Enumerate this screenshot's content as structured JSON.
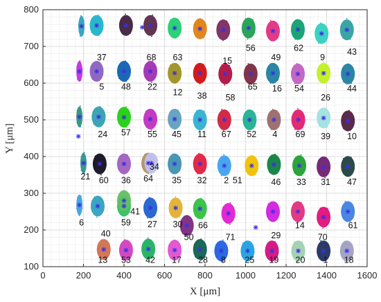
{
  "chart_data": {
    "type": "scatter",
    "title": "",
    "xlabel": "X [μm]",
    "ylabel": "Y [μm]",
    "xlim": [
      0,
      1600
    ],
    "ylim": [
      100,
      800
    ],
    "xticks": [
      0,
      200,
      400,
      600,
      800,
      1000,
      1200,
      1400,
      1600
    ],
    "yticks": [
      100,
      200,
      300,
      400,
      500,
      600,
      700,
      800
    ],
    "grid": true,
    "minor_grid": true,
    "marker_color": "#3b2ee6",
    "clusters": [
      {
        "label": "37",
        "x": 265,
        "y": 757,
        "lx": 290,
        "ly": 670,
        "color": "#1fb3c9"
      },
      {
        "label": "68",
        "x": 530,
        "y": 757,
        "lx": 535,
        "ly": 670,
        "color": "#5a2a4a"
      },
      {
        "label": "63",
        "x": 650,
        "y": 750,
        "lx": 665,
        "ly": 670,
        "color": "#20d070"
      },
      {
        "label": "15",
        "x": 890,
        "y": 745,
        "lx": 910,
        "ly": 660,
        "color": "#7a2a60"
      },
      {
        "label": "56",
        "x": 1015,
        "y": 750,
        "lx": 1025,
        "ly": 695,
        "color": "#20a050"
      },
      {
        "label": "49",
        "x": 1135,
        "y": 742,
        "lx": 1150,
        "ly": 670,
        "color": "#e03080"
      },
      {
        "label": "62",
        "x": 1258,
        "y": 746,
        "lx": 1262,
        "ly": 695,
        "color": "#10a070"
      },
      {
        "label": "9",
        "x": 1375,
        "y": 735,
        "lx": 1380,
        "ly": 670,
        "color": "#30d0c0"
      },
      {
        "label": "43",
        "x": 1500,
        "y": 745,
        "lx": 1525,
        "ly": 685,
        "color": "#30a0a0"
      },
      {
        "label": "5",
        "x": 265,
        "y": 632,
        "lx": 290,
        "ly": 590,
        "color": "#8a60c0"
      },
      {
        "label": "48",
        "x": 400,
        "y": 632,
        "lx": 410,
        "ly": 590,
        "color": "#1060b0"
      },
      {
        "label": "22",
        "x": 530,
        "y": 632,
        "lx": 540,
        "ly": 590,
        "color": "#a030b0"
      },
      {
        "label": "12",
        "x": 650,
        "y": 627,
        "lx": 665,
        "ly": 575,
        "color": "#a09020"
      },
      {
        "label": "38",
        "x": 775,
        "y": 627,
        "lx": 785,
        "ly": 565,
        "color": "#d01010"
      },
      {
        "label": "58",
        "x": 900,
        "y": 625,
        "lx": 925,
        "ly": 560,
        "color": "#b01040"
      },
      {
        "label": "65",
        "x": 1025,
        "y": 625,
        "lx": 1035,
        "ly": 590,
        "color": "#7a2a40"
      },
      {
        "label": "16",
        "x": 1135,
        "y": 627,
        "lx": 1155,
        "ly": 585,
        "color": "#2080a0"
      },
      {
        "label": "54",
        "x": 1258,
        "y": 625,
        "lx": 1265,
        "ly": 585,
        "color": "#c060c0"
      },
      {
        "label": "26",
        "x": 1385,
        "y": 627,
        "lx": 1395,
        "ly": 560,
        "color": "#c0f020"
      },
      {
        "label": "44",
        "x": 1505,
        "y": 625,
        "lx": 1525,
        "ly": 585,
        "color": "#2080a0"
      },
      {
        "label": "24",
        "x": 275,
        "y": 508,
        "lx": 295,
        "ly": 460,
        "color": "#30a0b0"
      },
      {
        "label": "57",
        "x": 400,
        "y": 507,
        "lx": 410,
        "ly": 465,
        "color": "#20d010"
      },
      {
        "label": "55",
        "x": 530,
        "y": 502,
        "lx": 540,
        "ly": 460,
        "color": "#c030c0"
      },
      {
        "label": "45",
        "x": 650,
        "y": 502,
        "lx": 660,
        "ly": 460,
        "color": "#60a0c0"
      },
      {
        "label": "11",
        "x": 775,
        "y": 500,
        "lx": 785,
        "ly": 460,
        "color": "#30b0d0"
      },
      {
        "label": "67",
        "x": 895,
        "y": 500,
        "lx": 905,
        "ly": 460,
        "color": "#d02040"
      },
      {
        "label": "52",
        "x": 1020,
        "y": 500,
        "lx": 1030,
        "ly": 460,
        "color": "#20b090"
      },
      {
        "label": "4",
        "x": 1140,
        "y": 500,
        "lx": 1145,
        "ly": 460,
        "color": "#9a6a6a"
      },
      {
        "label": "69",
        "x": 1260,
        "y": 500,
        "lx": 1270,
        "ly": 460,
        "color": "#e02070"
      },
      {
        "label": "39",
        "x": 1385,
        "y": 505,
        "lx": 1395,
        "ly": 455,
        "color": "#a0e0e0"
      },
      {
        "label": "10",
        "x": 1505,
        "y": 497,
        "lx": 1525,
        "ly": 455,
        "color": "#502040"
      },
      {
        "label": "21",
        "x": 200,
        "y": 382,
        "lx": 210,
        "ly": 345,
        "color": "#309090"
      },
      {
        "label": "60",
        "x": 280,
        "y": 380,
        "lx": 300,
        "ly": 335,
        "color": "#101020"
      },
      {
        "label": "36",
        "x": 400,
        "y": 380,
        "lx": 410,
        "ly": 335,
        "color": "#a060c0"
      },
      {
        "label": "64",
        "x": 520,
        "y": 382,
        "lx": 520,
        "ly": 340,
        "color": "#b09060"
      },
      {
        "label": "34",
        "x": 535,
        "y": 382,
        "lx": 550,
        "ly": 372,
        "color": "#c0c0f0"
      },
      {
        "label": "35",
        "x": 650,
        "y": 380,
        "lx": 660,
        "ly": 335,
        "color": "#4090b0"
      },
      {
        "label": "32",
        "x": 775,
        "y": 380,
        "lx": 785,
        "ly": 335,
        "color": "#e02040"
      },
      {
        "label": "2",
        "x": 895,
        "y": 375,
        "lx": 905,
        "ly": 335,
        "color": "#40a0f0"
      },
      {
        "label": "51",
        "x": 1030,
        "y": 375,
        "lx": 960,
        "ly": 335,
        "color": "#f0c000"
      },
      {
        "label": "46",
        "x": 1140,
        "y": 378,
        "lx": 1150,
        "ly": 330,
        "color": "#108040"
      },
      {
        "label": "33",
        "x": 1265,
        "y": 375,
        "lx": 1275,
        "ly": 330,
        "color": "#20a030"
      },
      {
        "label": "31",
        "x": 1385,
        "y": 372,
        "lx": 1395,
        "ly": 330,
        "color": "#702070"
      },
      {
        "label": "47",
        "x": 1505,
        "y": 373,
        "lx": 1525,
        "ly": 330,
        "color": "#204040"
      },
      {
        "label": "6",
        "x": 180,
        "y": 268,
        "lx": 190,
        "ly": 220,
        "color": "#40a0e0"
      },
      {
        "label": "40",
        "x": 270,
        "y": 265,
        "lx": 310,
        "ly": 190,
        "color": "#30a0c0"
      },
      {
        "label": "59",
        "x": 400,
        "y": 265,
        "lx": 410,
        "ly": 220,
        "color": "#30c060"
      },
      {
        "label": "41",
        "x": 400,
        "y": 280,
        "lx": 455,
        "ly": 250,
        "color": "#60c060"
      },
      {
        "label": "27",
        "x": 530,
        "y": 260,
        "lx": 540,
        "ly": 215,
        "color": "#2060d0"
      },
      {
        "label": "30",
        "x": 655,
        "y": 260,
        "lx": 665,
        "ly": 215,
        "color": "#e0b030"
      },
      {
        "label": "50",
        "x": 710,
        "y": 212,
        "lx": 720,
        "ly": 180,
        "color": "#7a2a80"
      },
      {
        "label": "66",
        "x": 775,
        "y": 258,
        "lx": 790,
        "ly": 212,
        "color": "#30c040"
      },
      {
        "label": "71",
        "x": 915,
        "y": 245,
        "lx": 925,
        "ly": 180,
        "color": "#e020d0"
      },
      {
        "label": "29",
        "x": 1135,
        "y": 250,
        "lx": 1150,
        "ly": 185,
        "color": "#d020e0"
      },
      {
        "label": "14",
        "x": 1258,
        "y": 250,
        "lx": 1268,
        "ly": 212,
        "color": "#e03080"
      },
      {
        "label": "70",
        "x": 1385,
        "y": 235,
        "lx": 1380,
        "ly": 180,
        "color": "#e0107a"
      },
      {
        "label": "61",
        "x": 1505,
        "y": 250,
        "lx": 1530,
        "ly": 212,
        "color": "#4080e0"
      },
      {
        "label": "13",
        "x": 300,
        "y": 147,
        "lx": 295,
        "ly": 118,
        "color": "#d07050"
      },
      {
        "label": "53",
        "x": 410,
        "y": 145,
        "lx": 410,
        "ly": 118,
        "color": "#d040c0"
      },
      {
        "label": "42",
        "x": 520,
        "y": 148,
        "lx": 530,
        "ly": 118,
        "color": "#20b060"
      },
      {
        "label": "17",
        "x": 650,
        "y": 145,
        "lx": 660,
        "ly": 118,
        "color": "#e050d0"
      },
      {
        "label": "28",
        "x": 775,
        "y": 147,
        "lx": 790,
        "ly": 118,
        "color": "#106050"
      },
      {
        "label": "8",
        "x": 880,
        "y": 143,
        "lx": 890,
        "ly": 118,
        "color": "#2060e0"
      },
      {
        "label": "25",
        "x": 1010,
        "y": 143,
        "lx": 1020,
        "ly": 118,
        "color": "#20a0e0"
      },
      {
        "label": "19",
        "x": 1130,
        "y": 143,
        "lx": 1140,
        "ly": 118,
        "color": "#d01080"
      },
      {
        "label": "20",
        "x": 1260,
        "y": 143,
        "lx": 1270,
        "ly": 118,
        "color": "#a0d0b0"
      },
      {
        "label": "1",
        "x": 1385,
        "y": 143,
        "lx": 1395,
        "ly": 118,
        "color": "#203060"
      },
      {
        "label": "18",
        "x": 1500,
        "y": 143,
        "lx": 1510,
        "ly": 118,
        "color": "#a0a0c0"
      },
      {
        "label": "",
        "x": 190,
        "y": 755,
        "color": "#30a0c0"
      },
      {
        "label": "",
        "x": 410,
        "y": 757,
        "color": "#402040"
      },
      {
        "label": "",
        "x": 775,
        "y": 748,
        "color": "#e08010"
      },
      {
        "label": "",
        "x": 180,
        "y": 632,
        "color": "#c030e0"
      },
      {
        "label": "",
        "x": 180,
        "y": 508,
        "color": "#309080"
      }
    ],
    "stray_markers": [
      {
        "x": 490,
        "y": 752
      },
      {
        "x": 175,
        "y": 455
      },
      {
        "x": 1050,
        "y": 207
      }
    ]
  }
}
